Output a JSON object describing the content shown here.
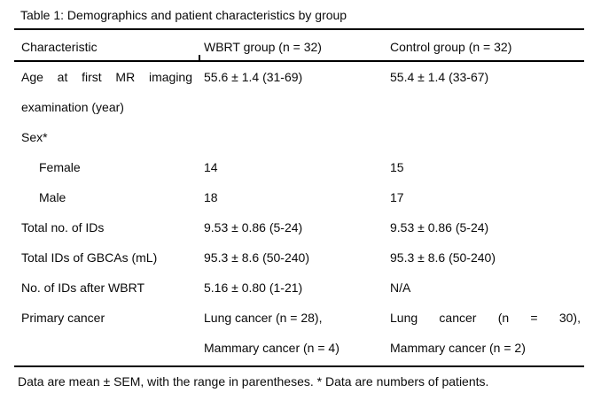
{
  "table": {
    "title": "Table 1: Demographics and patient characteristics by group",
    "columns": [
      "Characteristic",
      "WBRT group (n = 32)",
      "Control group (n = 32)"
    ],
    "rows": [
      {
        "c1": "Age at first MR imaging",
        "c1_justify": true,
        "c2": "55.6 ± 1.4 (31-69)",
        "c3": "55.4 ± 1.4 (33-67)"
      },
      {
        "c1": "examination (year)",
        "c2": "",
        "c3": ""
      },
      {
        "c1": "Sex*",
        "c2": "",
        "c3": ""
      },
      {
        "c1": "Female",
        "indent": true,
        "c2": "14",
        "c3": "15"
      },
      {
        "c1": "Male",
        "indent": true,
        "c2": "18",
        "c3": "17"
      },
      {
        "c1": "Total no. of IDs",
        "c2": "9.53 ± 0.86 (5-24)",
        "c3": "9.53 ± 0.86 (5-24)"
      },
      {
        "c1": "Total IDs of GBCAs (mL)",
        "c2": "95.3 ± 8.6 (50-240)",
        "c3": "95.3 ± 8.6 (50-240)"
      },
      {
        "c1": "No. of IDs after WBRT",
        "c2": "5.16 ± 0.80 (1-21)",
        "c3": "N/A"
      },
      {
        "c1": "Primary cancer",
        "c2": "Lung cancer (n = 28),",
        "c3": "Lung cancer (n = 30),",
        "c3_justify": true
      },
      {
        "c1": "",
        "c2": "Mammary cancer (n = 4)",
        "c3": "Mammary cancer (n = 2)"
      }
    ],
    "footnote": "Data are mean ± SEM, with the range in parentheses. * Data are numbers of patients."
  }
}
